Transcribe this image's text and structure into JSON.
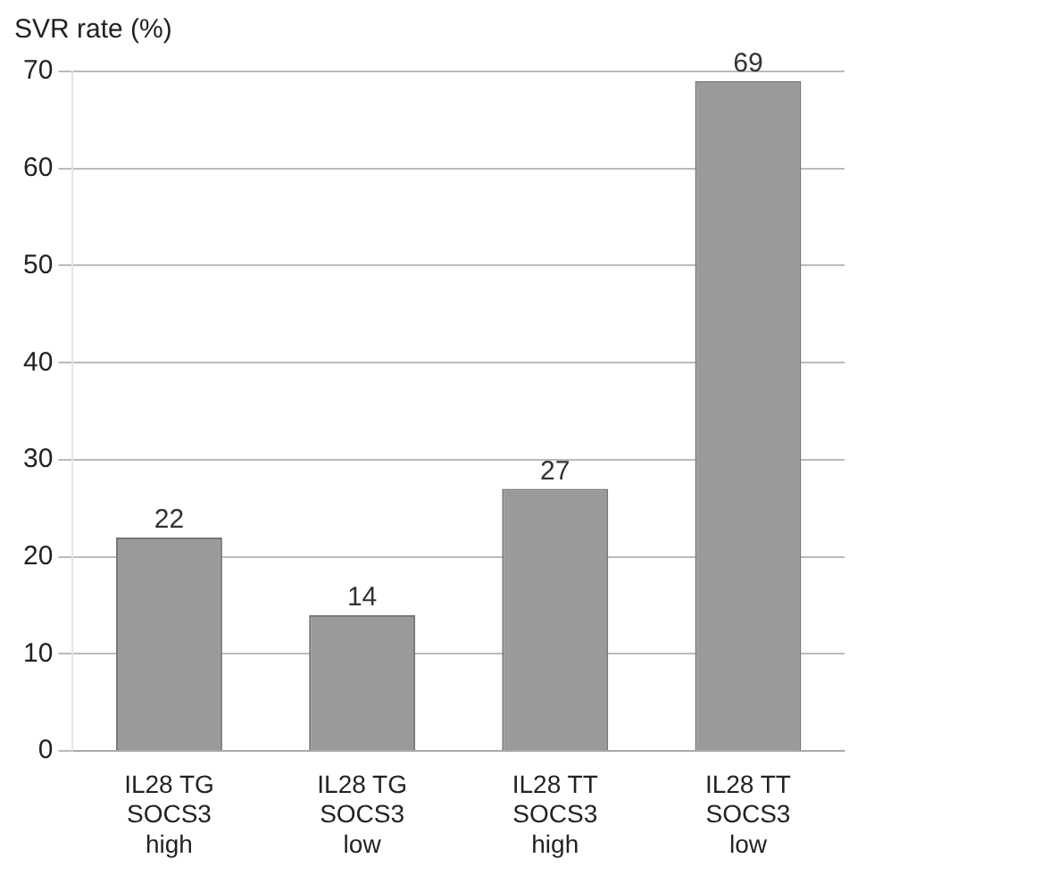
{
  "chart_data": {
    "type": "bar",
    "ylabel": "SVR rate (%)",
    "categories": [
      "IL28 TG\nSOCS3\nhigh",
      "IL28 TG\nSOCS3\nlow",
      "IL28 TT\nSOCS3\nhigh",
      "IL28 TT\nSOCS3\nlow"
    ],
    "values": [
      22,
      14,
      27,
      69
    ],
    "color": "#9a9a9a",
    "ylim": [
      0,
      70
    ],
    "yticks": [
      0,
      10,
      20,
      30,
      40,
      50,
      60,
      70
    ],
    "grid": "y",
    "data_labels": true,
    "legend": false
  }
}
